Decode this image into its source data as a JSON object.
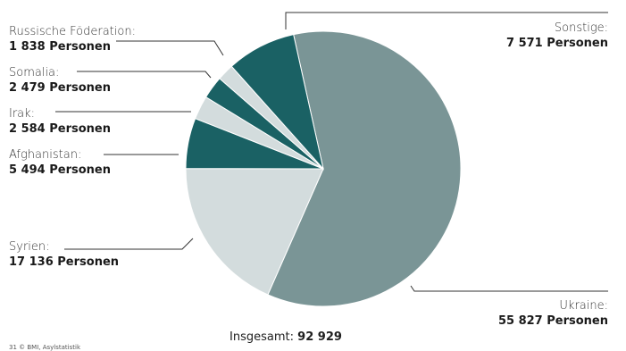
{
  "chart_data": {
    "type": "pie",
    "slices": [
      {
        "name": "Ukraine:",
        "value": 55827,
        "value_label": "55 827 Personen",
        "color": "#7a9596"
      },
      {
        "name": "Syrien:",
        "value": 17136,
        "value_label": "17 136 Personen",
        "color": "#d3dcdd"
      },
      {
        "name": "Afghanistan:",
        "value": 5494,
        "value_label": "5 494 Personen",
        "color": "#1a6164"
      },
      {
        "name": "Irak:",
        "value": 2584,
        "value_label": "2 584 Personen",
        "color": "#d3dcdd"
      },
      {
        "name": "Somalia:",
        "value": 2479,
        "value_label": "2 479 Personen",
        "color": "#1a6164"
      },
      {
        "name": "Russische Föderation:",
        "value": 1838,
        "value_label": "1 838 Personen",
        "color": "#d3dcdd"
      },
      {
        "name": "Sonstige:",
        "value": 7571,
        "value_label": "7 571 Personen",
        "color": "#1a6164"
      }
    ],
    "total_label": "Insgesamt:",
    "total_value": "92 929"
  },
  "source": "31 © BMI, Asylstatistik"
}
